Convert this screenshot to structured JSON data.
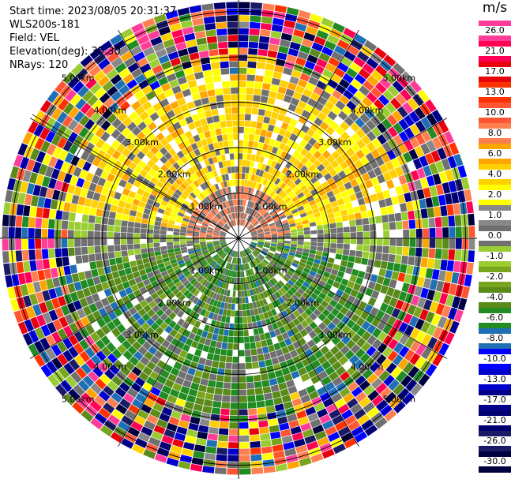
{
  "header": {
    "start_time": "Start time: 2023/08/05 20:31:37",
    "instrument": "WLS200s-181",
    "field": "Field: VEL",
    "elevation": "Elevation(deg): 35.30",
    "nrays": "NRays: 120"
  },
  "colorbar": {
    "unit": "m/s",
    "entries": [
      {
        "label": "26.0",
        "color": "#ff3d99"
      },
      {
        "label": "21.0",
        "color": "#ff0055"
      },
      {
        "label": "17.0",
        "color": "#e8000d"
      },
      {
        "label": "13.0",
        "color": "#ff3300"
      },
      {
        "label": "10.0",
        "color": "#ff5533"
      },
      {
        "label": "8.0",
        "color": "#ff7f50"
      },
      {
        "label": "6.0",
        "color": "#ffa500"
      },
      {
        "label": "4.0",
        "color": "#ffd000"
      },
      {
        "label": "2.0",
        "color": "#ffff00"
      },
      {
        "label": "1.0",
        "color": "#888888"
      },
      {
        "label": "0.0",
        "color": "#707070"
      },
      {
        "label": "-1.0",
        "color": "#9acd32"
      },
      {
        "label": "-2.0",
        "color": "#7aa51e"
      },
      {
        "label": "-4.0",
        "color": "#5a8a1a"
      },
      {
        "label": "-6.0",
        "color": "#228b22"
      },
      {
        "label": "-8.0",
        "color": "#1f6fb4"
      },
      {
        "label": "-10.0",
        "color": "#0000ff"
      },
      {
        "label": "-13.0",
        "color": "#0000cd"
      },
      {
        "label": "-17.0",
        "color": "#00008b"
      },
      {
        "label": "-21.0",
        "color": "#000070"
      },
      {
        "label": "-26.0",
        "color": "#1a1a66"
      },
      {
        "label": "-30.0",
        "color": "#000040"
      }
    ]
  },
  "chart_data": {
    "type": "heatmap",
    "subtype": "ppi-polar",
    "n_rays": 120,
    "range_rings_km": [
      1.0,
      2.0,
      3.0,
      4.0,
      5.0
    ],
    "ring_label_text": [
      "1.00km",
      "2.00km",
      "3.00km",
      "4.00km",
      "5.00km"
    ],
    "spoke_angles_deg": [
      0,
      30,
      60,
      90,
      120,
      150,
      180,
      210,
      240,
      270,
      300,
      301,
      330
    ],
    "pattern": {
      "north_half_velocity_ms": [
        2.0,
        6.0
      ],
      "south_half_velocity_ms": [
        -6.0,
        -1.0
      ],
      "outer_range_km": [
        3.5,
        5.6
      ],
      "outer_note": "noisy mixed values"
    }
  }
}
